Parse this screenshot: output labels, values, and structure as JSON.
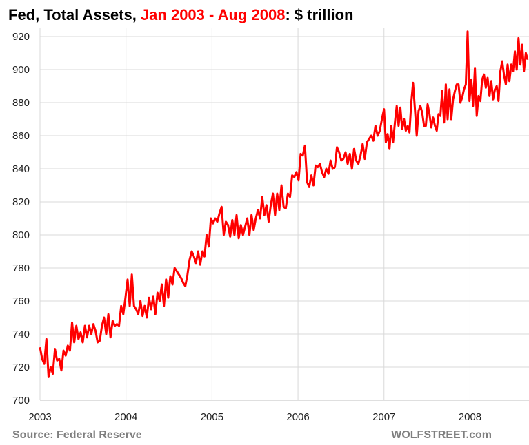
{
  "chart_data": {
    "type": "line",
    "title_parts": {
      "prefix": "Fed, Total Assets, ",
      "highlight": "Jan 2003 - Aug 2008",
      "suffix": ": $ trillion"
    },
    "xlabel": "",
    "ylabel": "",
    "xlim": [
      2003.0,
      2008.686
    ],
    "ylim": [
      700,
      920
    ],
    "x_ticks": [
      "2003",
      "2004",
      "2005",
      "2006",
      "2007",
      "2008"
    ],
    "y_ticks": [
      700,
      720,
      740,
      760,
      780,
      800,
      820,
      840,
      860,
      880,
      900,
      920
    ],
    "grid": true,
    "legend": "none",
    "series": [
      {
        "name": "Fed Total Assets",
        "color": "#ff0000",
        "segments": [
          {
            "start": 2003.0,
            "end": 2007.0,
            "values": [
              732,
              725,
              722,
              737,
              714,
              720,
              716,
              731,
              724,
              725,
              718,
              730,
              727,
              733,
              730,
              747,
              735,
              745,
              737,
              741,
              735,
              745,
              738,
              745,
              740,
              746,
              742,
              735,
              736,
              745,
              750,
              740,
              752,
              738,
              748,
              745,
              746,
              745,
              757,
              752,
              762,
              773,
              757,
              776,
              757,
              755,
              752,
              760,
              751,
              757,
              750,
              762,
              755,
              763,
              752,
              765,
              760,
              770,
              757,
              773,
              762,
              775,
              770,
              780,
              778,
              776,
              774,
              771,
              769,
              776,
              785,
              790,
              787,
              783,
              790,
              782,
              790,
              787,
              800,
              793,
              810,
              807,
              810,
              808,
              813,
              817,
              800,
              808,
              806,
              799,
              809,
              800,
              812,
              798,
              806,
              800,
              805,
              810,
              800,
              812,
              803,
              810,
              815,
              810,
              823,
              812,
              818,
              808,
              818,
              825,
              812,
              825,
              815,
              830,
              817,
              816,
              825,
              823,
              836,
              835,
              838,
              833,
              849,
              848,
              854,
              832,
              829,
              836,
              830,
              842,
              841,
              843,
              838,
              835,
              840,
              837,
              845,
              840,
              841,
              853,
              850,
              845,
              846,
              850,
              843,
              849,
              840,
              852,
              845,
              843,
              848,
              855,
              846,
              856,
              858,
              860,
              857,
              866,
              860,
              863,
              870,
              876
            ]
          },
          {
            "start": 2007.0,
            "end": 2008.67,
            "values": [
              876,
              856,
              861,
              852,
              866,
              856,
              868,
              878,
              866,
              877,
              864,
              870,
              863,
              866,
              862,
              880,
              892,
              876,
              860,
              875,
              878,
              874,
              866,
              866,
              879,
              873,
              865,
              871,
              866,
              863,
              873,
              872,
              887,
              868,
              891,
              870,
              888,
              870,
              882,
              887,
              891,
              891,
              880,
              883,
              888,
              891,
              923,
              881,
              894,
              878,
              901,
              872,
              884,
              881,
              894,
              897,
              889,
              895,
              884,
              893,
              882,
              888,
              890,
              881,
              899,
              905,
              897,
              891,
              903,
              893,
              903,
              899,
              911,
              900,
              919,
              903,
              915,
              899,
              910,
              906
            ]
          }
        ]
      }
    ]
  },
  "footer": {
    "source": "Source: Federal Reserve",
    "brand": "WOLFSTREET.com"
  }
}
